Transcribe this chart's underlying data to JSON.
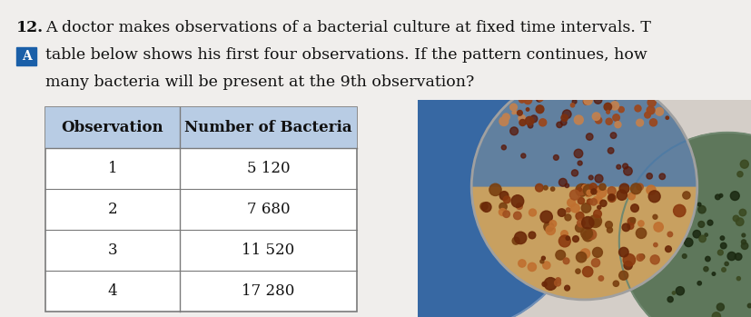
{
  "title_number": "12.",
  "title_line1": "A doctor makes observations of a bacterial culture at fixed time intervals. T",
  "title_line2": "table below shows his first four observations. If the pattern continues, how",
  "title_line3": "many bacteria will be present at the 9th observation?",
  "label_A": "A",
  "col1_header": "Observation",
  "col2_header": "Number of Bacteria",
  "rows": [
    [
      "1",
      "5 120"
    ],
    [
      "2",
      "7 680"
    ],
    [
      "3",
      "11 520"
    ],
    [
      "4",
      "17 280"
    ]
  ],
  "bg_color": "#f0eeec",
  "table_header_bg": "#b8cce4",
  "table_border_color": "#7a7a7a",
  "text_color": "#111111",
  "font_size_title": 12.5,
  "font_size_table": 12,
  "photo_bg": "#c8cdd6"
}
